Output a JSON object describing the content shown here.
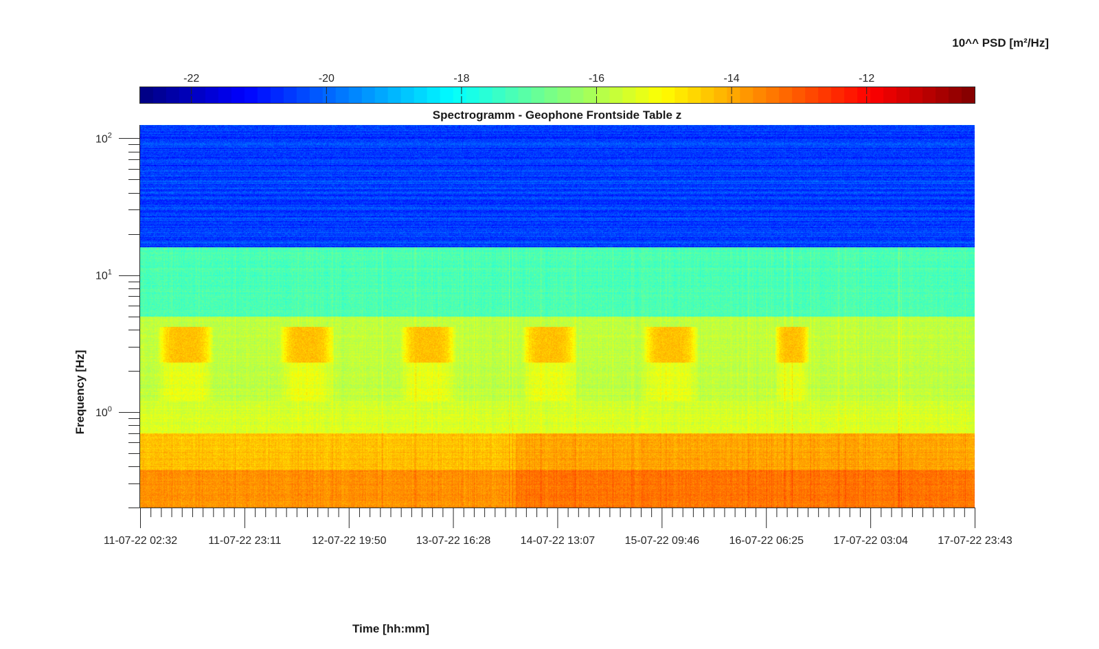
{
  "colorbar": {
    "title": "10^^ PSD [m²/Hz]",
    "ticks": [
      -22,
      -20,
      -18,
      -16,
      -14,
      -12
    ],
    "tick_labels": [
      "-22",
      "-20",
      "-18",
      "-16",
      "-14",
      "-12"
    ],
    "range": [
      -22.76,
      -10.4
    ],
    "colormap": "jet"
  },
  "chart_data": {
    "type": "heatmap",
    "title": "Spectrogramm - Geophone Frontside Table z",
    "xlabel": "Time [hh:mm]",
    "ylabel": "Frequency [Hz]",
    "x_tick_labels": [
      "11-07-22 02:32",
      "11-07-22 23:11",
      "12-07-22 19:50",
      "13-07-22 16:28",
      "14-07-22 13:07",
      "15-07-22 09:46",
      "16-07-22 06:25",
      "17-07-22 03:04",
      "17-07-22 23:43"
    ],
    "x_range": [
      "11-07-22 02:32",
      "17-07-22 23:43"
    ],
    "y_scale": "log",
    "y_range": [
      0.2,
      125
    ],
    "y_tick_labels": [
      {
        "base": "10",
        "exp": "2",
        "value": 100
      },
      {
        "base": "10",
        "exp": "1",
        "value": 10
      },
      {
        "base": "10",
        "exp": "0",
        "value": 1
      }
    ],
    "z_units": "log10 PSD [m²/Hz]",
    "frequency_bands": [
      {
        "f_low": 16,
        "f_high": 125,
        "log10_psd": -20.5
      },
      {
        "f_low": 5,
        "f_high": 16,
        "log10_psd": -17.2
      },
      {
        "f_low": 1.2,
        "f_high": 5,
        "log10_psd": -15.8
      },
      {
        "f_low": 0.7,
        "f_high": 1.2,
        "log10_psd": -15.5
      },
      {
        "f_low": 0.2,
        "f_high": 0.7,
        "log10_psd": -14.3
      }
    ],
    "daytime_activity": {
      "f_low": 2.3,
      "f_high": 4.2,
      "log10_psd": -14.0,
      "periods": [
        [
          "11-07-22 06:00",
          "11-07-22 17:00"
        ],
        [
          "12-07-22 06:00",
          "12-07-22 17:00"
        ],
        [
          "13-07-22 06:00",
          "13-07-22 17:00"
        ],
        [
          "14-07-22 06:00",
          "14-07-22 17:00"
        ],
        [
          "15-07-22 06:00",
          "15-07-22 17:00"
        ],
        [
          "16-07-22 08:00",
          "16-07-22 15:00"
        ]
      ]
    },
    "colors": {
      "axis": "#262626",
      "background": "#ffffff"
    }
  }
}
